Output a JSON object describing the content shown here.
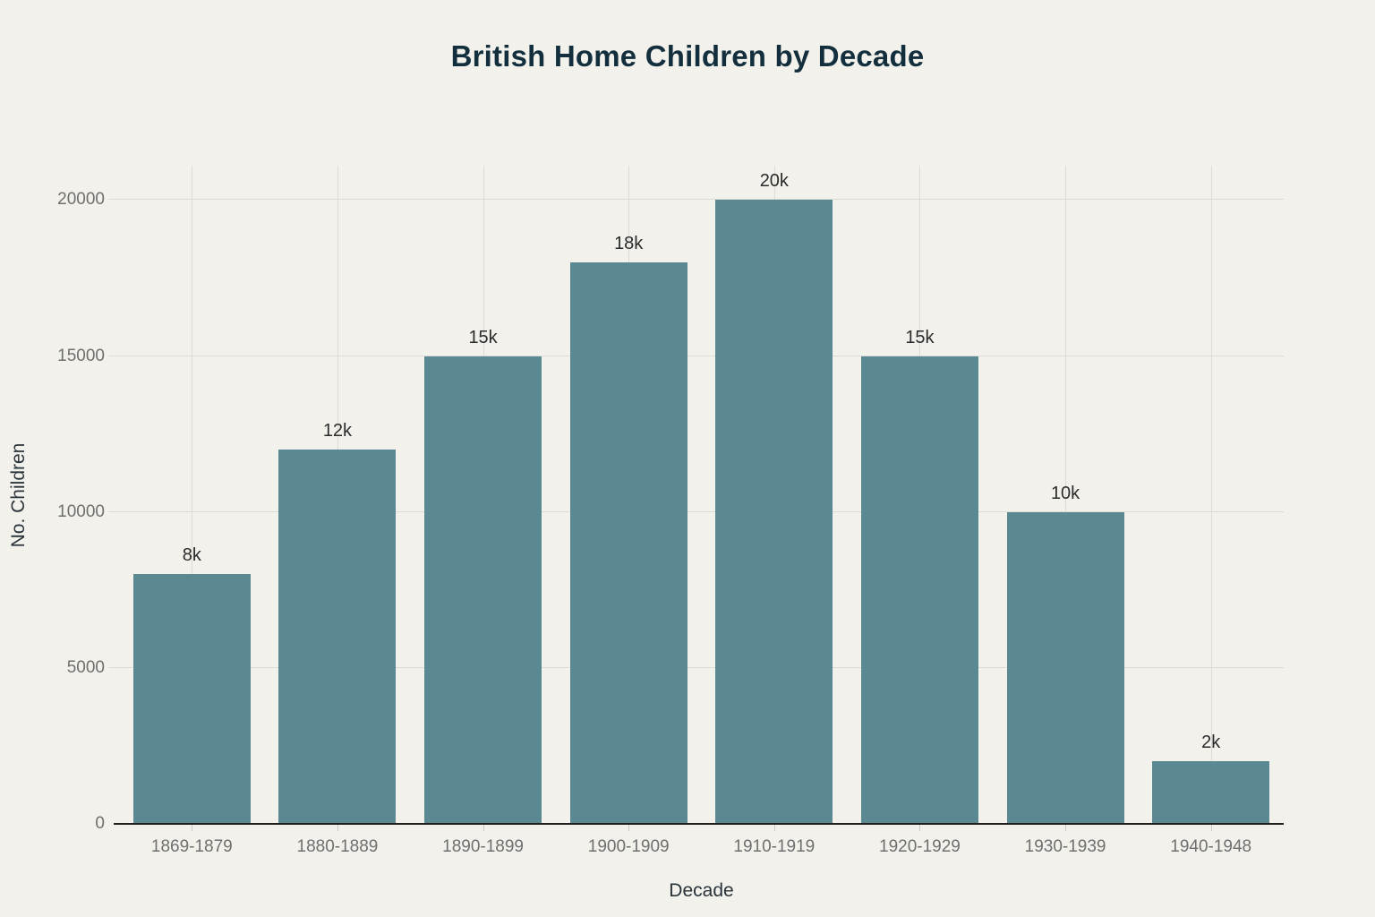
{
  "chart_data": {
    "type": "bar",
    "title": "British Home Children by Decade",
    "xlabel": "Decade",
    "ylabel": "No. Children",
    "categories": [
      "1869-1879",
      "1880-1889",
      "1890-1899",
      "1900-1909",
      "1910-1919",
      "1920-1929",
      "1930-1939",
      "1940-1948"
    ],
    "values": [
      8000,
      12000,
      15000,
      18000,
      20000,
      15000,
      10000,
      2000
    ],
    "value_labels": [
      "8k",
      "12k",
      "15k",
      "18k",
      "20k",
      "15k",
      "10k",
      "2k"
    ],
    "y_ticks": [
      {
        "value": 0,
        "label": "0"
      },
      {
        "value": 5000,
        "label": "5000"
      },
      {
        "value": 10000,
        "label": "10000"
      },
      {
        "value": 15000,
        "label": "15000"
      },
      {
        "value": 20000,
        "label": "20000"
      }
    ],
    "ylim": [
      0,
      21100
    ],
    "grid": true,
    "legend": "none",
    "colors": {
      "background": "#f2f1ec",
      "bar": "#5b8992",
      "grid": "#dcdbd5",
      "axis_line": "#1f1f1f",
      "tick_label": "#6f6f6f",
      "title": "#132f3d",
      "axis_title": "#29333a",
      "value_label": "#2b2b2b"
    }
  }
}
